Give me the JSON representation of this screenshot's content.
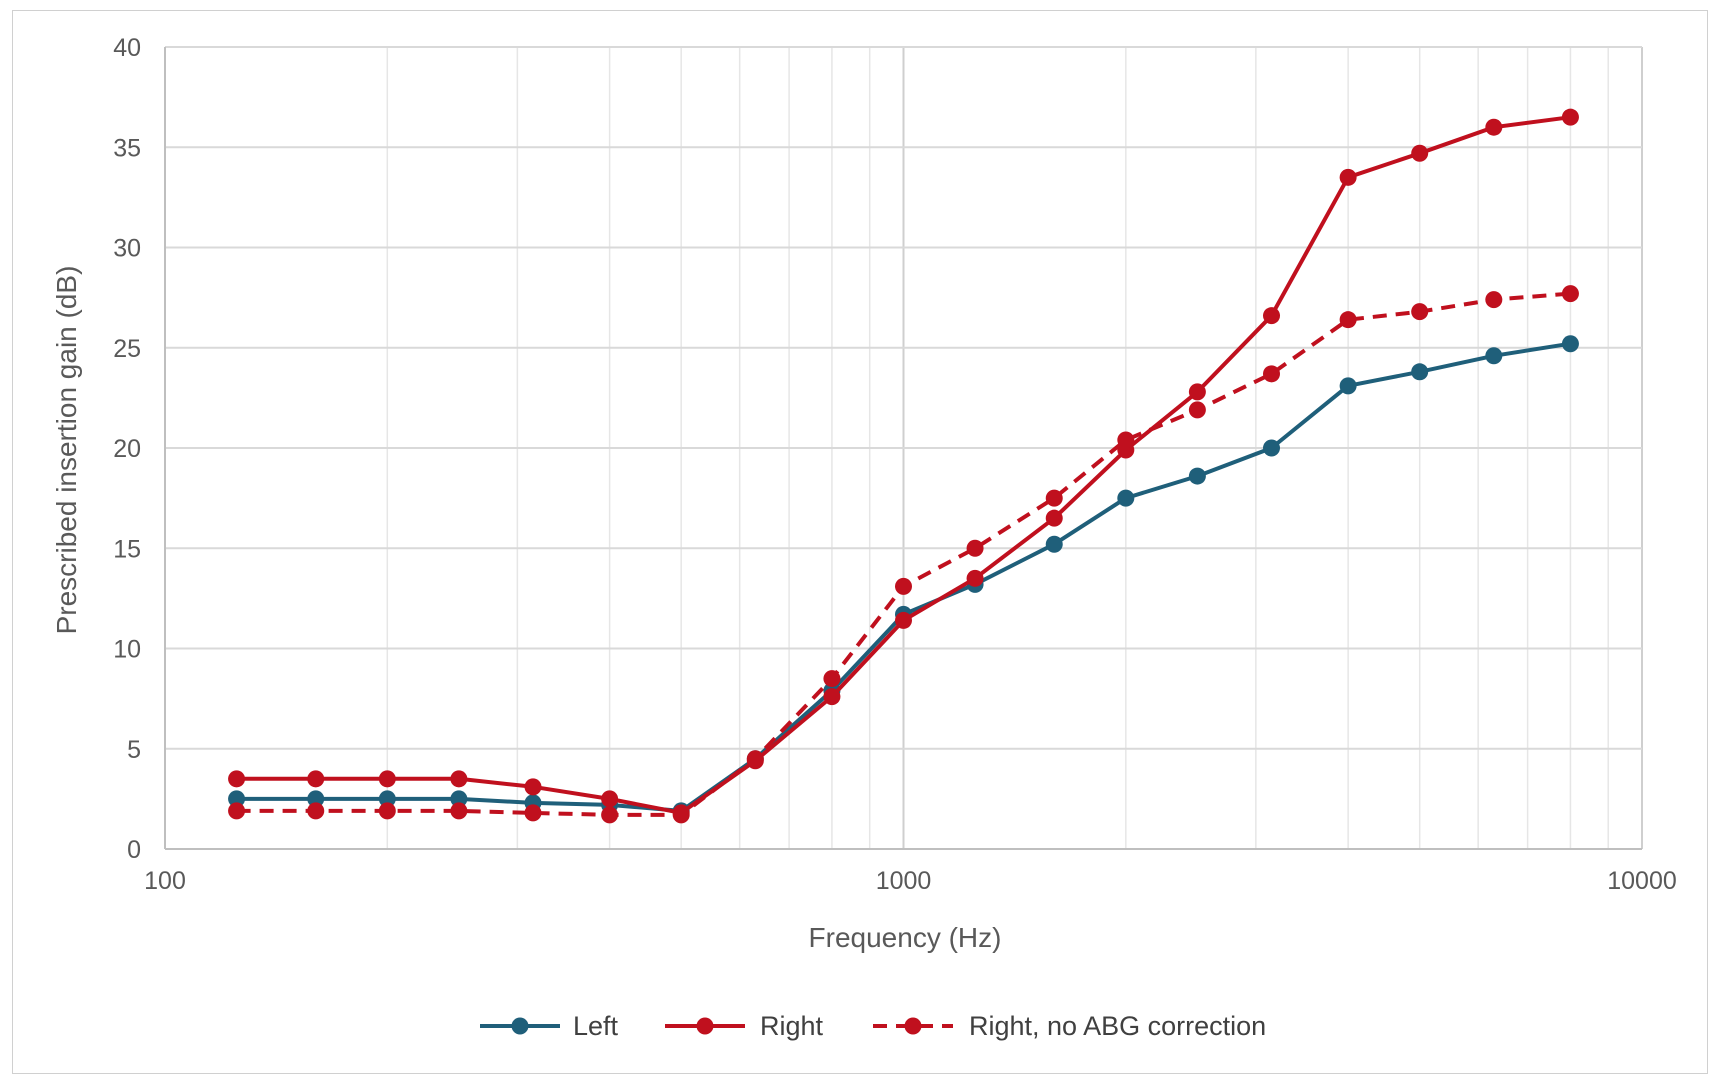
{
  "chart_data": {
    "type": "line",
    "x_scale": "log",
    "xlim": [
      100,
      10000
    ],
    "ylim": [
      0,
      40
    ],
    "xlabel": "Frequency (Hz)",
    "ylabel": "Prescribed insertion gain (dB)",
    "x_ticks": [
      "100",
      "1000",
      "10000"
    ],
    "y_ticks": [
      "0",
      "5",
      "10",
      "15",
      "20",
      "25",
      "30",
      "35",
      "40"
    ],
    "grid": true,
    "legend_position": "bottom",
    "x": [
      125,
      160,
      200,
      250,
      315,
      400,
      500,
      630,
      800,
      1000,
      1250,
      1600,
      2000,
      2500,
      3150,
      4000,
      5000,
      6300,
      8000
    ],
    "series": [
      {
        "name": "Left",
        "color": "#1f5f7a",
        "style": "solid",
        "values": [
          2.5,
          2.5,
          2.5,
          2.5,
          2.3,
          2.2,
          1.9,
          4.5,
          7.9,
          11.7,
          13.2,
          15.2,
          17.5,
          18.6,
          20.0,
          23.1,
          23.8,
          24.6,
          25.2
        ]
      },
      {
        "name": "Right",
        "color": "#c0101e",
        "style": "solid",
        "values": [
          3.5,
          3.5,
          3.5,
          3.5,
          3.1,
          2.5,
          1.8,
          4.4,
          7.6,
          11.4,
          13.5,
          16.5,
          19.9,
          22.8,
          26.6,
          33.5,
          34.7,
          36.0,
          36.5
        ]
      },
      {
        "name": "Right, no ABG correction",
        "color": "#c0101e",
        "style": "dashed",
        "values": [
          1.9,
          1.9,
          1.9,
          1.9,
          1.8,
          1.7,
          1.7,
          4.5,
          8.5,
          13.1,
          15.0,
          17.5,
          20.4,
          21.9,
          23.7,
          26.4,
          26.8,
          27.4,
          27.7
        ]
      }
    ]
  }
}
